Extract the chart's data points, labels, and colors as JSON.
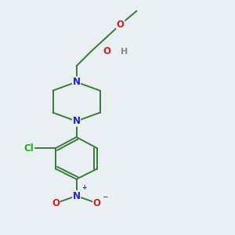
{
  "bg_color": "#eaeff3",
  "bond_color": "#3a7a3a",
  "N_color": "#2222cc",
  "O_color": "#cc2222",
  "Cl_color": "#22aa22",
  "line_width": 1.4,
  "font_size": 8.5,
  "figsize": [
    3.0,
    3.0
  ],
  "dpi": 100,
  "xlim": [
    0.1,
    0.9
  ],
  "ylim": [
    0.02,
    0.98
  ]
}
